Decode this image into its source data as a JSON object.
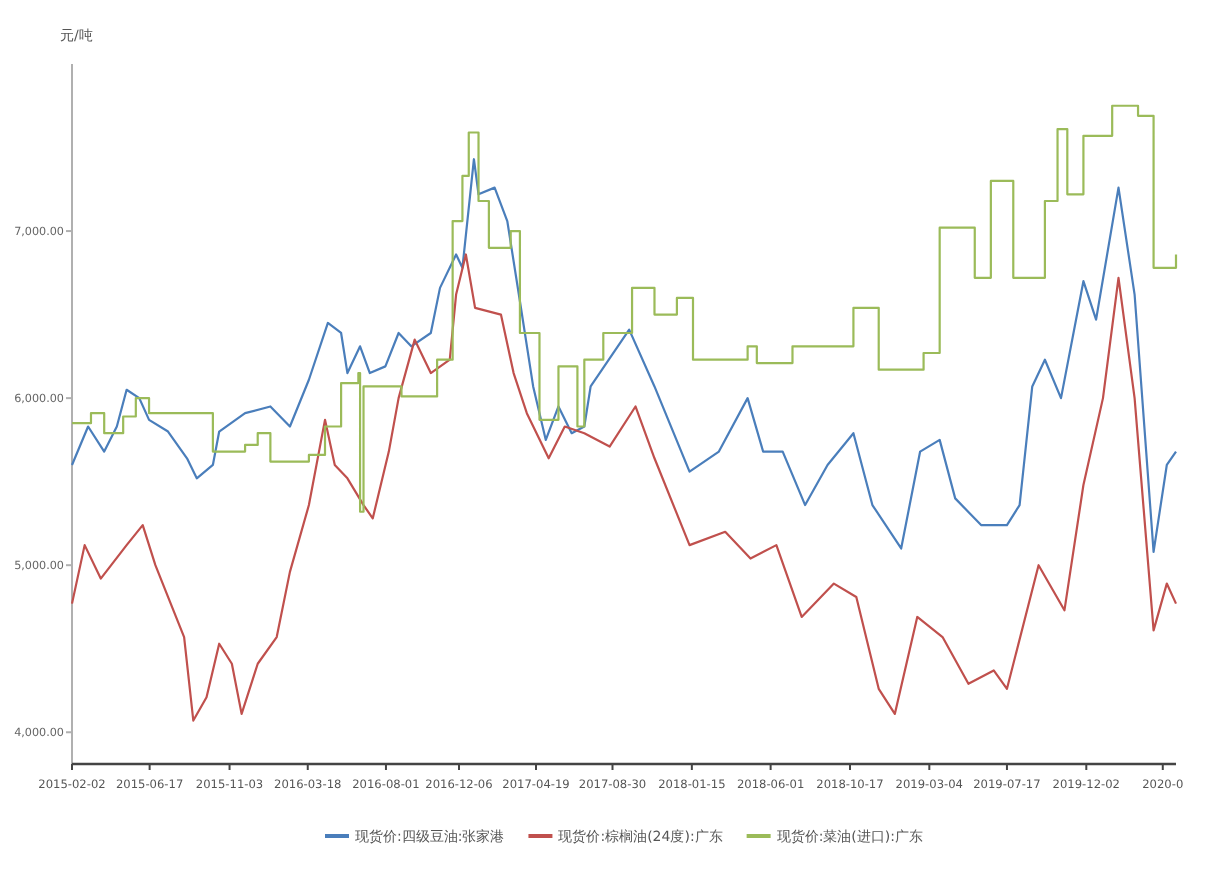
{
  "chart_data": {
    "type": "line",
    "ylabel": "元/吨",
    "legend": "bottom",
    "xlim": [
      "2015-02-02",
      "2020-05-06"
    ],
    "ylim": [
      3810,
      8000
    ],
    "yticks": [
      {
        "value": 4000,
        "label": "4,000.00"
      },
      {
        "value": 5000,
        "label": "5,000.00"
      },
      {
        "value": 6000,
        "label": "6,000.00"
      },
      {
        "value": 7000,
        "label": "7,000.00"
      }
    ],
    "xticks": [
      "2015-02-02",
      "2015-06-17",
      "2015-11-03",
      "2016-03-18",
      "2016-08-01",
      "2016-12-06",
      "2017-04-19",
      "2017-08-30",
      "2018-01-15",
      "2018-06-01",
      "2018-10-17",
      "2019-03-04",
      "2019-07-17",
      "2019-12-02",
      {
        "value": "2020-04-13",
        "label": "2020-0"
      }
    ],
    "series": [
      {
        "name": "现货价:四级豆油:张家港",
        "color": "#4a7ebb",
        "x": [
          "2015-02-02",
          "2015-03-02",
          "2015-03-30",
          "2015-04-21",
          "2015-05-08",
          "2015-05-30",
          "2015-06-16",
          "2015-07-19",
          "2015-08-21",
          "2015-09-07",
          "2015-10-05",
          "2015-10-16",
          "2015-11-30",
          "2016-01-13",
          "2016-02-16",
          "2016-03-20",
          "2016-04-22",
          "2016-05-15",
          "2016-05-26",
          "2016-06-17",
          "2016-07-04",
          "2016-07-31",
          "2016-08-23",
          "2016-09-14",
          "2016-10-18",
          "2016-11-03",
          "2016-12-01",
          "2016-12-12",
          "2017-01-01",
          "2017-01-09",
          "2017-02-06",
          "2017-02-28",
          "2017-03-22",
          "2017-04-14",
          "2017-05-06",
          "2017-05-28",
          "2017-06-20",
          "2017-07-12",
          "2017-07-23",
          "2017-09-28",
          "2017-11-11",
          "2018-01-11",
          "2018-03-03",
          "2018-04-22",
          "2018-05-19",
          "2018-06-22",
          "2018-07-31",
          "2018-09-08",
          "2018-10-23",
          "2018-11-25",
          "2019-01-14",
          "2019-02-16",
          "2019-03-22",
          "2019-04-18",
          "2019-06-02",
          "2019-07-17",
          "2019-08-08",
          "2019-08-30",
          "2019-09-21",
          "2019-10-19",
          "2019-11-27",
          "2019-12-19",
          "2020-01-27",
          "2020-02-24",
          "2020-03-28",
          "2020-04-20",
          "2020-05-06"
        ],
        "values": [
          5600,
          5830,
          5680,
          5830,
          6050,
          6000,
          5870,
          5800,
          5640,
          5520,
          5600,
          5800,
          5910,
          5950,
          5830,
          6110,
          6450,
          6390,
          6150,
          6310,
          6150,
          6190,
          6390,
          6310,
          6390,
          6660,
          6860,
          6780,
          7430,
          7220,
          7260,
          7060,
          6580,
          6070,
          5750,
          5950,
          5790,
          5830,
          6070,
          6410,
          6070,
          5560,
          5680,
          6000,
          5680,
          5680,
          5360,
          5600,
          5790,
          5360,
          5100,
          5680,
          5750,
          5400,
          5240,
          5240,
          5360,
          6070,
          6230,
          6000,
          6700,
          6470,
          7260,
          6620,
          5080,
          5600,
          5680
        ]
      },
      {
        "name": "现货价:棕榈油(24度):广东",
        "color": "#c0504d",
        "x": [
          "2015-02-02",
          "2015-02-24",
          "2015-03-24",
          "2015-05-08",
          "2015-06-05",
          "2015-06-27",
          "2015-07-19",
          "2015-08-16",
          "2015-09-01",
          "2015-09-24",
          "2015-10-16",
          "2015-11-07",
          "2015-11-24",
          "2015-12-22",
          "2016-01-24",
          "2016-02-16",
          "2016-03-20",
          "2016-04-17",
          "2016-05-04",
          "2016-05-26",
          "2016-06-23",
          "2016-07-09",
          "2016-08-06",
          "2016-08-23",
          "2016-09-20",
          "2016-10-18",
          "2016-11-20",
          "2016-12-01",
          "2016-12-18",
          "2017-01-03",
          "2017-02-17",
          "2017-03-11",
          "2017-04-03",
          "2017-05-11",
          "2017-06-08",
          "2017-07-12",
          "2017-08-25",
          "2017-10-09",
          "2017-11-11",
          "2018-01-11",
          "2018-03-14",
          "2018-04-27",
          "2018-06-11",
          "2018-07-25",
          "2018-09-19",
          "2018-10-28",
          "2018-12-06",
          "2019-01-03",
          "2019-02-11",
          "2019-03-27",
          "2019-05-11",
          "2019-06-24",
          "2019-07-17",
          "2019-09-10",
          "2019-10-25",
          "2019-11-27",
          "2019-12-31",
          "2020-01-27",
          "2020-02-24",
          "2020-03-28",
          "2020-04-20",
          "2020-05-06"
        ],
        "values": [
          4770,
          5120,
          4920,
          5120,
          5240,
          5000,
          4810,
          4570,
          4070,
          4210,
          4530,
          4410,
          4110,
          4410,
          4570,
          4960,
          5360,
          5870,
          5600,
          5520,
          5360,
          5280,
          5680,
          6000,
          6350,
          6150,
          6230,
          6620,
          6860,
          6540,
          6500,
          6150,
          5910,
          5640,
          5830,
          5790,
          5710,
          5950,
          5640,
          5120,
          5200,
          5040,
          5120,
          4690,
          4890,
          4810,
          4260,
          4110,
          4690,
          4570,
          4290,
          4370,
          4260,
          5000,
          4730,
          5480,
          6000,
          6720,
          6000,
          4610,
          4890,
          4770
        ]
      },
      {
        "name": "现货价:菜油(进口):广东",
        "color": "#9bbb59",
        "type": "step",
        "x": [
          "2015-02-02",
          "2015-03-07",
          "2015-03-30",
          "2015-05-02",
          "2015-05-24",
          "2015-06-16",
          "2015-10-05",
          "2015-11-30",
          "2015-12-22",
          "2016-01-13",
          "2016-03-20",
          "2016-04-17",
          "2016-05-15",
          "2016-06-14",
          "2016-06-17",
          "2016-06-23",
          "2016-08-28",
          "2016-10-29",
          "2016-11-25",
          "2016-12-12",
          "2016-12-23",
          "2017-01-09",
          "2017-01-27",
          "2017-03-06",
          "2017-03-22",
          "2017-04-25",
          "2017-05-28",
          "2017-06-30",
          "2017-07-12",
          "2017-08-14",
          "2017-10-03",
          "2017-11-11",
          "2017-12-20",
          "2018-01-17",
          "2018-04-22",
          "2018-05-08",
          "2018-07-09",
          "2018-10-23",
          "2018-12-06",
          "2019-02-22",
          "2019-03-22",
          "2019-05-22",
          "2019-06-19",
          "2019-07-28",
          "2019-09-21",
          "2019-10-13",
          "2019-10-30",
          "2019-11-27",
          "2020-01-16",
          "2020-03-01",
          "2020-03-28",
          "2020-05-06"
        ],
        "values": [
          5850,
          5910,
          5790,
          5890,
          6000,
          5910,
          5680,
          5720,
          5790,
          5620,
          5660,
          5830,
          6090,
          6150,
          5320,
          6070,
          6010,
          6230,
          7060,
          7330,
          7590,
          7180,
          6900,
          7000,
          6390,
          5870,
          6190,
          5830,
          6230,
          6390,
          6660,
          6500,
          6600,
          6230,
          6310,
          6210,
          6310,
          6540,
          6170,
          6270,
          7020,
          6720,
          7300,
          6720,
          7180,
          7610,
          7220,
          7570,
          7750,
          7690,
          6780,
          6860
        ]
      }
    ]
  }
}
